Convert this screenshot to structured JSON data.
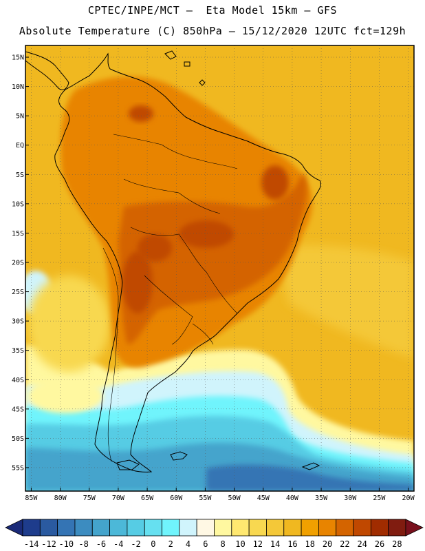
{
  "header": {
    "line1": "CPTEC/INPE/MCT –  Eta Model 15km – GFS",
    "line2": "Absolute Temperature (C) 850hPa – 15/12/2020 12UTC fct=129h"
  },
  "map": {
    "lon_range": [
      -86,
      -19
    ],
    "lat_range": [
      -59,
      17
    ],
    "lat_labels": [
      "15N",
      "10N",
      "5N",
      "EQ",
      "5S",
      "10S",
      "15S",
      "20S",
      "25S",
      "30S",
      "35S",
      "40S",
      "45S",
      "50S",
      "55S"
    ],
    "lat_values": [
      15,
      10,
      5,
      0,
      -5,
      -10,
      -15,
      -20,
      -25,
      -30,
      -35,
      -40,
      -45,
      -50,
      -55
    ],
    "lon_labels": [
      "85W",
      "80W",
      "75W",
      "70W",
      "65W",
      "60W",
      "55W",
      "50W",
      "45W",
      "40W",
      "35W",
      "30W",
      "25W",
      "20W"
    ],
    "lon_values": [
      -85,
      -80,
      -75,
      -70,
      -65,
      -60,
      -55,
      -50,
      -45,
      -40,
      -35,
      -30,
      -25,
      -20
    ],
    "grid": "dotted"
  },
  "colorbar": {
    "labels": [
      "-14",
      "-12",
      "-10",
      "-8",
      "-6",
      "-4",
      "-2",
      "0",
      "2",
      "4",
      "6",
      "8",
      "10",
      "12",
      "14",
      "16",
      "18",
      "20",
      "22",
      "24",
      "26",
      "28"
    ],
    "colors": [
      "#1e3c8c",
      "#2a5aa0",
      "#3474b4",
      "#3c8cc0",
      "#44a4cc",
      "#4cb8d8",
      "#56cce4",
      "#66e0f0",
      "#70f4fc",
      "#d0f4fc",
      "#fff8e4",
      "#fff8a0",
      "#ffe870",
      "#f8d850",
      "#f4c838",
      "#f0b820",
      "#f0a000",
      "#e88400",
      "#d46400",
      "#c04800",
      "#a02c00",
      "#801c10"
    ],
    "under_color": "#1a2a78",
    "over_color": "#78101c"
  },
  "field_colors": {
    "ocean_warm": "#f0b820",
    "tropical_land": "#e88400",
    "hot_core": "#d46400",
    "very_hot": "#c04800",
    "subtropical": "#f4c838",
    "mild": "#f8d850",
    "cool": "#fff8a0",
    "cold_1": "#d0f4fc",
    "cold_2": "#70f4fc",
    "cold_3": "#56cce4",
    "cold_4": "#44a4cc",
    "cold_5": "#3474b4",
    "cold_6": "#2a5aa0"
  }
}
